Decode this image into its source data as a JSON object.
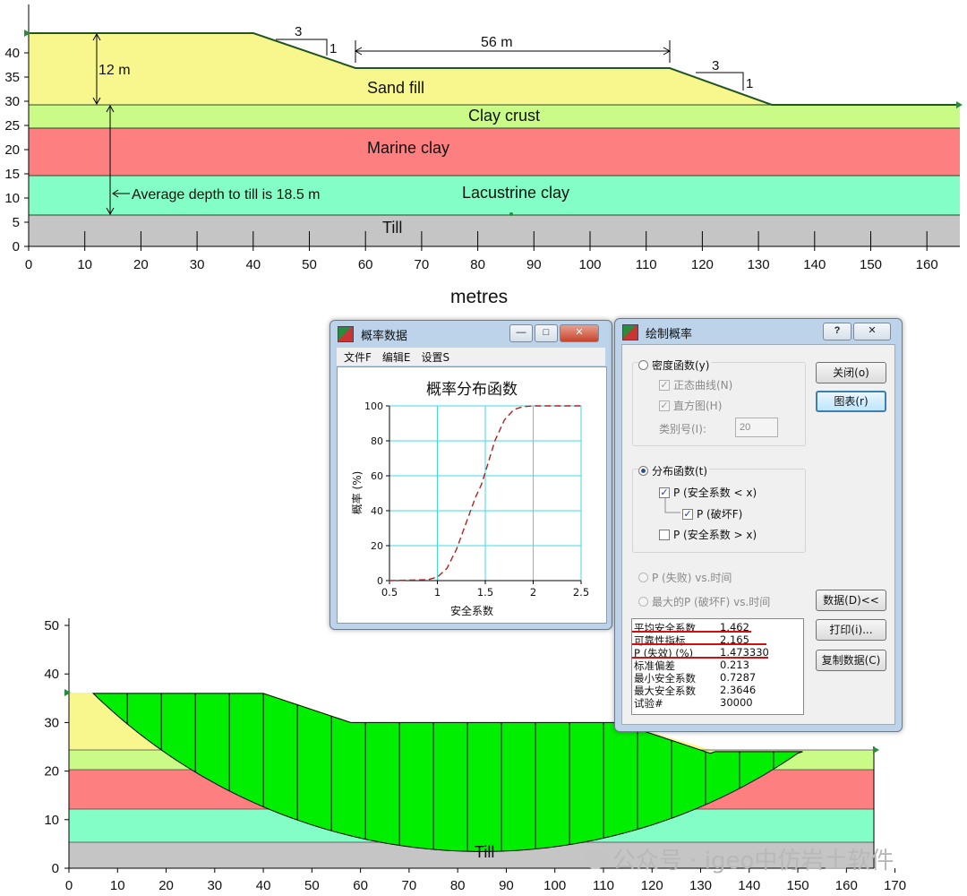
{
  "top_chart": {
    "xlabel": "metres",
    "x_ticks": [
      "0",
      "10",
      "20",
      "30",
      "40",
      "50",
      "60",
      "70",
      "80",
      "90",
      "100",
      "110",
      "120",
      "130",
      "140",
      "150",
      "160"
    ],
    "y_ticks": [
      "0",
      "5",
      "10",
      "15",
      "20",
      "25",
      "30",
      "35",
      "40"
    ],
    "layers": [
      {
        "name": "Sand fill",
        "color": "#f8f78e"
      },
      {
        "name": "Clay crust",
        "color": "#c9fb86"
      },
      {
        "name": "Marine clay",
        "color": "#fd7f7f"
      },
      {
        "name": "Lacustrine clay",
        "color": "#83fec6"
      },
      {
        "name": "Till",
        "color": "#c5c5c5"
      }
    ],
    "annotations": {
      "height": "12 m",
      "crest_width": "56 m",
      "slope_left_run": "3",
      "slope_left_rise": "1",
      "slope_right_run": "3",
      "slope_right_rise": "1",
      "depth_note": "Average depth to till is 18.5 m"
    }
  },
  "bottom_chart": {
    "x_ticks": [
      "0",
      "10",
      "20",
      "30",
      "40",
      "50",
      "60",
      "70",
      "80",
      "90",
      "100",
      "110",
      "120",
      "130",
      "140",
      "150",
      "160",
      "170"
    ],
    "y_ticks": [
      "0",
      "10",
      "20",
      "30",
      "40",
      "50"
    ],
    "till_label": "Till",
    "slip_fill": "#00ee00"
  },
  "prob_window": {
    "title": "概率数据",
    "menu": [
      "文件F",
      "编辑E",
      "设置S"
    ],
    "chart_data": {
      "type": "line",
      "title": "概率分布函数",
      "xlabel": "安全系数",
      "ylabel": "概率 (%)",
      "xlim": [
        0.5,
        2.5
      ],
      "ylim": [
        0,
        100
      ],
      "x_ticks": [
        "0.5",
        "1",
        "1.5",
        "2",
        "2.5"
      ],
      "y_ticks": [
        "0",
        "20",
        "40",
        "60",
        "80",
        "100"
      ],
      "grid": true,
      "series": [
        {
          "x": [
            0.5,
            0.9,
            1.0,
            1.1,
            1.2,
            1.3,
            1.4,
            1.46,
            1.5,
            1.6,
            1.7,
            1.8,
            1.9,
            2.0,
            2.5
          ],
          "y": [
            0,
            0.5,
            2,
            7,
            18,
            33,
            48,
            55,
            62,
            80,
            92,
            98,
            99.6,
            100,
            100
          ],
          "color": "#b02020"
        }
      ]
    }
  },
  "plot_dialog": {
    "title": "绘制概率",
    "help": "?",
    "density": "密度函数(y)",
    "normal_curve": "正态曲线(N)",
    "histogram": "直方图(H)",
    "bins_label": "类别号(I):",
    "bins_value": "20",
    "distribution": "分布函数(t)",
    "p_sf_lt": "P (安全系数 < x)",
    "p_fail": "P (破坏F)",
    "p_sf_gt": "P (安全系数 > x)",
    "p_fail_time": "P (失败) vs.时间",
    "max_p_time": "最大的P (破坏F) vs.时间",
    "btn_close": "关闭(o)",
    "btn_chart": "图表(r)",
    "btn_data": "数据(D)<<",
    "btn_print": "打印(i)...",
    "btn_copy": "复制数据(C)",
    "stats": [
      {
        "label": "平均安全系数",
        "value": "1.462"
      },
      {
        "label": "可靠性指标",
        "value": "2.165"
      },
      {
        "label": "P (失效) (%)",
        "value": "1.473330"
      },
      {
        "label": "标准偏差",
        "value": "0.213"
      },
      {
        "label": "最小安全系数",
        "value": "0.7287"
      },
      {
        "label": "最大安全系数",
        "value": "2.3646"
      },
      {
        "label": "试验#",
        "value": "30000"
      }
    ]
  },
  "watermark": "公众号 · igeo中仿岩土软件"
}
